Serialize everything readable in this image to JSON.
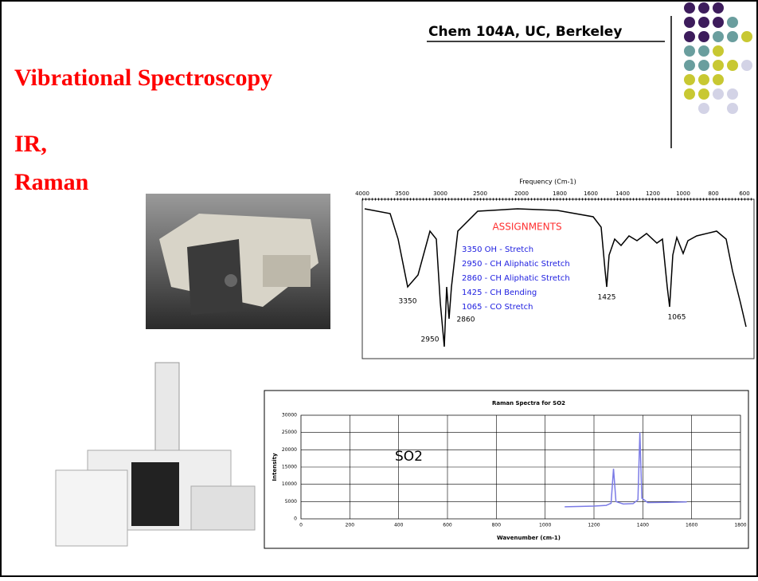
{
  "header": {
    "course": "Chem 104A, UC, Berkeley",
    "title": "Vibrational Spectroscopy",
    "subtitle_lines": [
      "IR,",
      "Raman"
    ]
  },
  "ir_spectrum": {
    "axis_title": "Frequency (Cm-1)",
    "axis_labels": [
      "4000",
      "3500",
      "3000",
      "2500",
      "2000",
      "1800",
      "1600",
      "1400",
      "1200",
      "1000",
      "800",
      "600"
    ],
    "assignments_title": "ASSIGNMENTS",
    "assignments": [
      "3350 OH - Stretch",
      "2950 - CH Aliphatic Stretch",
      "2860 - CH Aliphatic Stretch",
      "1425 - CH Bending",
      "1065 - CO Stretch"
    ],
    "peak_labels": [
      "3350",
      "2950",
      "2860",
      "1425",
      "1065"
    ]
  },
  "chart_data": {
    "type": "line",
    "title": "Raman Spectra for SO2",
    "xlabel": "Wavenumber (cm-1)",
    "ylabel": "Intensity",
    "annotation": "SO2",
    "x": [
      1080,
      1150,
      1200,
      1250,
      1270,
      1280,
      1290,
      1320,
      1360,
      1380,
      1388,
      1396,
      1420,
      1500,
      1580
    ],
    "values": [
      3500,
      3600,
      3700,
      3900,
      4500,
      14500,
      5000,
      4300,
      4400,
      5500,
      25000,
      6000,
      4700,
      4800,
      4900
    ],
    "color": "#7b7be6",
    "xlim": [
      0,
      1800
    ],
    "xticks": [
      0,
      200,
      400,
      600,
      800,
      1000,
      1200,
      1400,
      1600,
      1800
    ],
    "ylim": [
      0,
      30000
    ],
    "yticks": [
      0,
      5000,
      10000,
      15000,
      20000,
      25000,
      30000
    ],
    "grid": true
  }
}
